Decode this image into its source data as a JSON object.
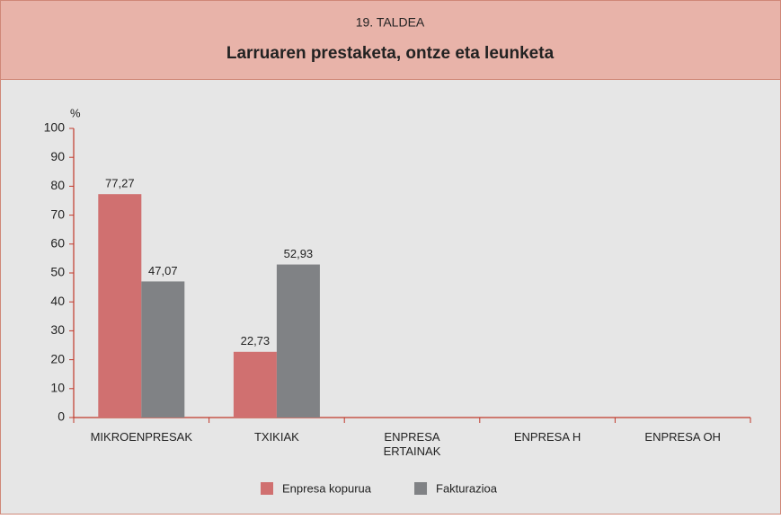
{
  "chart_data": {
    "type": "bar",
    "title": "19. TALDEA",
    "subtitle": "Larruaren prestaketa, ontze eta leunketa",
    "y_label": "%",
    "categories": [
      "MIKROENPRESAK",
      "TXIKIAK",
      "ENPRESA ERTAINAK",
      "ENPRESA H",
      "ENPRESA OH"
    ],
    "series": [
      {
        "name": "Enpresa kopurua",
        "color": "#d07070",
        "values": [
          77.27,
          22.73,
          null,
          null,
          null
        ],
        "value_labels": [
          "77,27",
          "22,73",
          null,
          null,
          null
        ]
      },
      {
        "name": "Fakturazioa",
        "color": "#808285",
        "values": [
          47.07,
          52.93,
          null,
          null,
          null
        ],
        "value_labels": [
          "47,07",
          "52,93",
          null,
          null,
          null
        ]
      }
    ],
    "ylim": [
      0,
      100
    ],
    "yticks": [
      0,
      10,
      20,
      30,
      40,
      50,
      60,
      70,
      80,
      90,
      100
    ],
    "legend": "bottom"
  }
}
